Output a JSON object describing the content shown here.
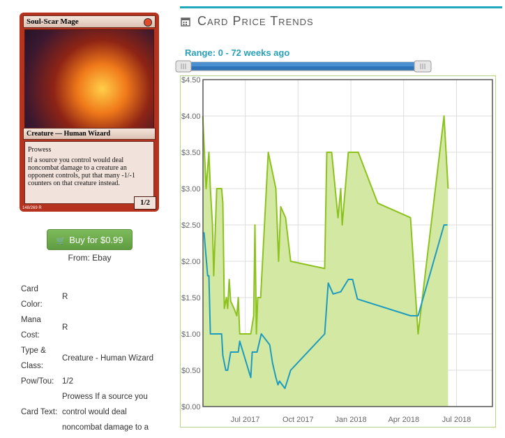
{
  "card": {
    "name": "Soul-Scar Mage",
    "type_line": "Creature — Human Wizard",
    "rules": [
      "Prowess",
      "If a source you control would deal noncombat damage to a creature an opponent controls, put that many -1/-1 counters on that creature instead."
    ],
    "pt": "1/2",
    "collector": "148/269 R"
  },
  "buy_button": "Buy for $0.99",
  "source": "From: Ebay",
  "details": [
    {
      "label": "Card Color:",
      "value": "R"
    },
    {
      "label": "Mana Cost:",
      "value": "R"
    },
    {
      "label": "Type & Class:",
      "value": "Creature - Human Wizard"
    },
    {
      "label": "Pow/Tou:",
      "value": "1/2"
    },
    {
      "label": "Card Text:",
      "value": "Prowess If a source you control would deal noncombat damage to a"
    }
  ],
  "header": {
    "title": "Card Price Trends"
  },
  "range_label": "Range: 0 - 72 weeks ago",
  "chart_data": {
    "type": "line",
    "xlim": [
      2017.3,
      2018.67
    ],
    "xticks": [
      {
        "value": 2017.5,
        "label": "Jul 2017"
      },
      {
        "value": 2017.75,
        "label": "Oct 2017"
      },
      {
        "value": 2018,
        "label": "Jan 2018"
      },
      {
        "value": 2018.25,
        "label": "Apr 2018"
      },
      {
        "value": 2018.5,
        "label": "Jul 2018"
      }
    ],
    "ylim": [
      0,
      4.5
    ],
    "yticks": [
      {
        "value": 0,
        "label": "$0.00"
      },
      {
        "value": 0.5,
        "label": "$0.50"
      },
      {
        "value": 1,
        "label": "$1.00"
      },
      {
        "value": 1.5,
        "label": "$1.50"
      },
      {
        "value": 2,
        "label": "$2.00"
      },
      {
        "value": 2.5,
        "label": "$2.50"
      },
      {
        "value": 3,
        "label": "$3.00"
      },
      {
        "value": 3.5,
        "label": "$3.50"
      },
      {
        "value": 4,
        "label": "$4.00"
      },
      {
        "value": 4.5,
        "label": "$4.50"
      }
    ],
    "grid": true,
    "series": [
      {
        "color": "#8cc21e",
        "fill": "#d3e8a2",
        "x": [
          2017.299,
          2017.315,
          2017.328,
          2017.335,
          2017.345,
          2017.351,
          2017.365,
          2017.388,
          2017.394,
          2017.401,
          2017.411,
          2017.417,
          2017.424,
          2017.431,
          2017.447,
          2017.46,
          2017.467,
          2017.474,
          2017.526,
          2017.54,
          2017.546,
          2017.553,
          2017.559,
          2017.573,
          2017.609,
          2017.645,
          2017.658,
          2017.668,
          2017.691,
          2017.715,
          2017.876,
          2017.886,
          2017.909,
          2017.939,
          2017.952,
          2017.959,
          2017.988,
          2018.035,
          2018.127,
          2018.282,
          2018.318,
          2018.441,
          2018.46
        ],
        "values": [
          4.0,
          3.0,
          3.5,
          3.0,
          2.5,
          1.8,
          3.0,
          3.0,
          2.8,
          1.35,
          1.5,
          1.35,
          1.75,
          1.45,
          1.35,
          1.25,
          1.5,
          1.0,
          1.0,
          1.25,
          2.5,
          1.0,
          1.5,
          1.5,
          3.5,
          3.0,
          2.0,
          2.75,
          2.6,
          2.0,
          1.9,
          3.5,
          3.5,
          2.6,
          3.0,
          2.5,
          3.5,
          3.5,
          2.8,
          2.6,
          1.0,
          4.0,
          3.0
        ]
      },
      {
        "color": "#1d9bbf",
        "x": [
          2017.305,
          2017.322,
          2017.328,
          2017.335,
          2017.388,
          2017.394,
          2017.408,
          2017.417,
          2017.431,
          2017.467,
          2017.474,
          2017.526,
          2017.533,
          2017.556,
          2017.576,
          2017.616,
          2017.629,
          2017.645,
          2017.655,
          2017.662,
          2017.688,
          2017.715,
          2017.876,
          2017.893,
          2017.916,
          2017.952,
          2017.988,
          2018.008,
          2018.031,
          2018.282,
          2018.318,
          2018.441,
          2018.457
        ],
        "values": [
          2.4,
          1.8,
          1.8,
          1.0,
          1.0,
          0.7,
          0.5,
          0.5,
          0.75,
          0.75,
          0.9,
          0.4,
          0.75,
          0.75,
          1.0,
          0.85,
          0.6,
          0.4,
          0.3,
          0.35,
          0.25,
          0.5,
          1.0,
          1.7,
          1.55,
          1.58,
          1.75,
          1.75,
          1.48,
          1.25,
          1.25,
          2.5,
          2.5
        ]
      }
    ]
  }
}
